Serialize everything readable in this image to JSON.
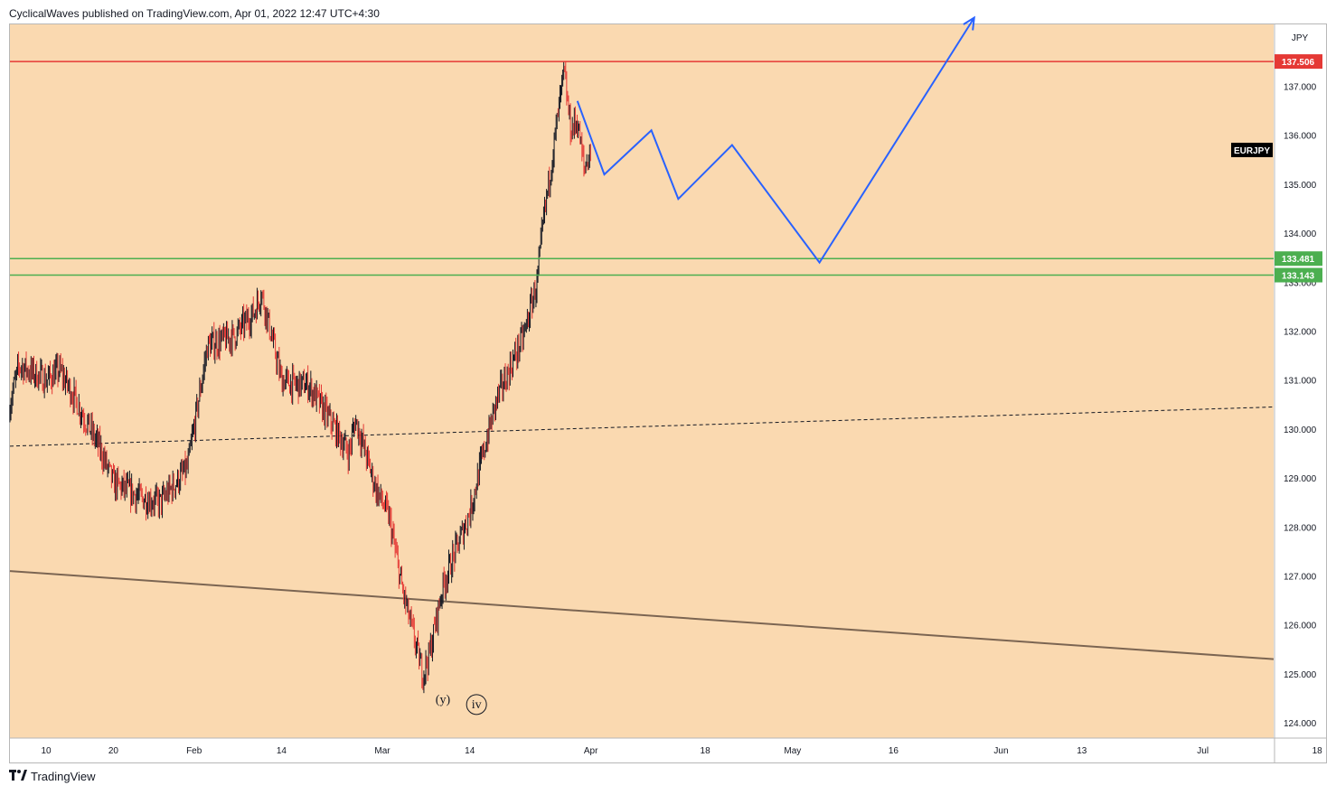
{
  "header": {
    "published_text": "CyclicalWaves published on TradingView.com, Apr 01, 2022 12:47 UTC+4:30"
  },
  "footer": {
    "brand": "TradingView",
    "logo_icon": "tradingview-logo-icon"
  },
  "colors": {
    "background": "#fad9b0",
    "resistance": "#e53935",
    "support": "#4caf50",
    "projection": "#2962ff",
    "trendline": "#7b6552",
    "candle_up": "#131722",
    "candle_down": "#e53935"
  },
  "chart_data": {
    "type": "candlestick",
    "symbol": "EURJPY",
    "currency": "JPY",
    "ylim": [
      123.6,
      138.8
    ],
    "y_ticks": [
      "124.000",
      "125.000",
      "126.000",
      "127.000",
      "128.000",
      "129.000",
      "130.000",
      "131.000",
      "132.000",
      "133.000",
      "134.000",
      "135.000",
      "136.000",
      "137.000"
    ],
    "x_ticks": [
      "10",
      "20",
      "Feb",
      "14",
      "Mar",
      "14",
      "Apr",
      "18",
      "May",
      "16",
      "Jun",
      "13",
      "Jul",
      "18"
    ],
    "horizontal_levels": [
      {
        "label": "137.506",
        "value": 137.506,
        "role": "resistance"
      },
      {
        "label": "133.481",
        "value": 133.481,
        "role": "support"
      },
      {
        "label": "133.143",
        "value": 133.143,
        "role": "support"
      }
    ],
    "price_path": [
      {
        "date": "2022-01-04",
        "price": 130.2
      },
      {
        "date": "2022-01-06",
        "price": 131.3
      },
      {
        "date": "2022-01-10",
        "price": 131.0
      },
      {
        "date": "2022-01-12",
        "price": 131.2
      },
      {
        "date": "2022-01-14",
        "price": 130.7
      },
      {
        "date": "2022-01-18",
        "price": 129.6
      },
      {
        "date": "2022-01-20",
        "price": 128.9
      },
      {
        "date": "2022-01-24",
        "price": 128.6
      },
      {
        "date": "2022-01-27",
        "price": 128.5
      },
      {
        "date": "2022-01-31",
        "price": 129.2
      },
      {
        "date": "2022-02-03",
        "price": 131.7
      },
      {
        "date": "2022-02-07",
        "price": 131.9
      },
      {
        "date": "2022-02-10",
        "price": 132.4
      },
      {
        "date": "2022-02-11",
        "price": 132.8
      },
      {
        "date": "2022-02-14",
        "price": 131.0
      },
      {
        "date": "2022-02-16",
        "price": 130.9
      },
      {
        "date": "2022-02-18",
        "price": 130.9
      },
      {
        "date": "2022-02-22",
        "price": 130.0
      },
      {
        "date": "2022-02-24",
        "price": 129.5
      },
      {
        "date": "2022-02-25",
        "price": 130.2
      },
      {
        "date": "2022-02-28",
        "price": 128.8
      },
      {
        "date": "2022-03-02",
        "price": 128.2
      },
      {
        "date": "2022-03-04",
        "price": 126.7
      },
      {
        "date": "2022-03-07",
        "price": 125.0
      },
      {
        "date": "2022-03-08",
        "price": 125.4
      },
      {
        "date": "2022-03-10",
        "price": 126.8
      },
      {
        "date": "2022-03-14",
        "price": 128.3
      },
      {
        "date": "2022-03-16",
        "price": 129.5
      },
      {
        "date": "2022-03-18",
        "price": 130.6
      },
      {
        "date": "2022-03-22",
        "price": 131.9
      },
      {
        "date": "2022-03-24",
        "price": 133.0
      },
      {
        "date": "2022-03-25",
        "price": 134.3
      },
      {
        "date": "2022-03-28",
        "price": 137.3
      },
      {
        "date": "2022-03-29",
        "price": 136.1
      },
      {
        "date": "2022-03-30",
        "price": 136.3
      },
      {
        "date": "2022-03-31",
        "price": 135.3
      },
      {
        "date": "2022-04-01",
        "price": 135.7
      }
    ],
    "projection_path": [
      {
        "date": "2022-03-30",
        "price": 136.7
      },
      {
        "date": "2022-04-03",
        "price": 135.2
      },
      {
        "date": "2022-04-10",
        "price": 136.1
      },
      {
        "date": "2022-04-14",
        "price": 134.7
      },
      {
        "date": "2022-04-22",
        "price": 135.8
      },
      {
        "date": "2022-05-05",
        "price": 133.4
      },
      {
        "date": "2022-05-28",
        "price": 138.4
      }
    ],
    "trendlines": [
      {
        "style": "dashed",
        "from": {
          "date": "2022-01-04",
          "price": 129.65
        },
        "to": {
          "date": "2022-07-20",
          "price": 130.45
        }
      },
      {
        "style": "solid",
        "from": {
          "date": "2022-01-04",
          "price": 127.1
        },
        "to": {
          "date": "2022-07-20",
          "price": 125.3
        }
      }
    ],
    "wave_labels": [
      {
        "text": "(y)",
        "date": "2022-03-10",
        "price": 124.4,
        "circled": false
      },
      {
        "text": "iv",
        "date": "2022-03-15",
        "price": 124.3,
        "circled": true
      }
    ]
  }
}
